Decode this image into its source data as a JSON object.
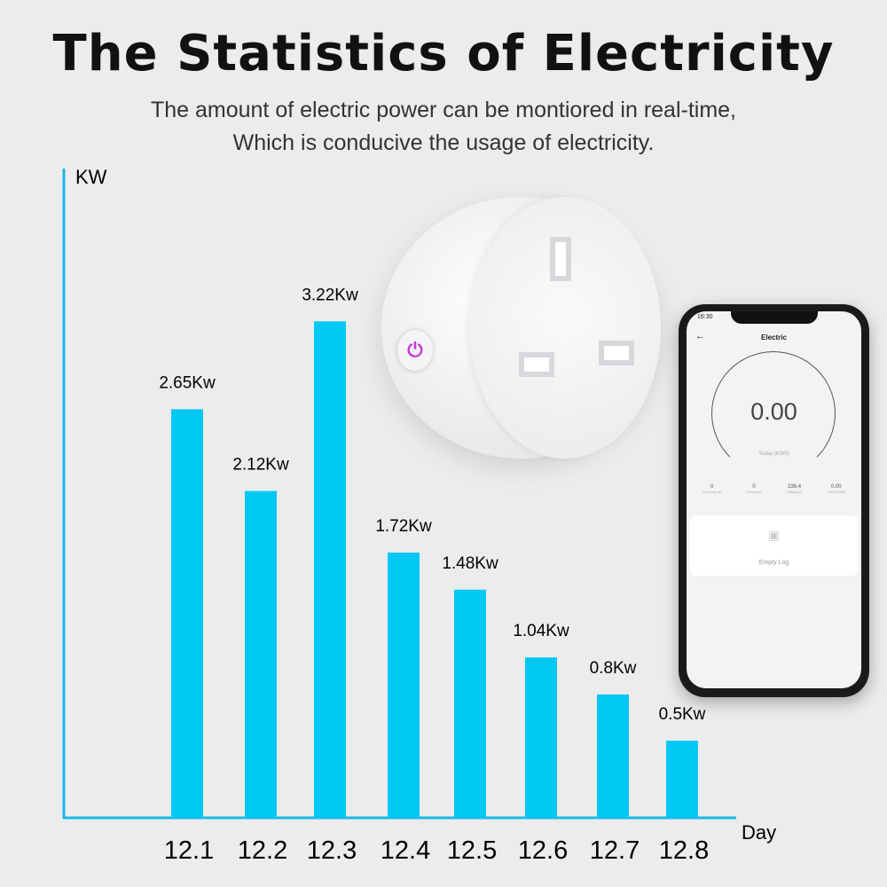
{
  "header": {
    "title": "The Statistics of Electricity",
    "subtitle_line1": "The amount of electric power can be montiored in real-time,",
    "subtitle_line2": "Which is conducive the usage of electricity."
  },
  "colors": {
    "bar": "#00c8f5",
    "axis": "#1ab8e8",
    "background": "#ececec"
  },
  "chart_data": {
    "type": "bar",
    "title": "",
    "ylabel": "KW",
    "xlabel": "Day",
    "categories": [
      "12.1",
      "12.2",
      "12.3",
      "12.4",
      "12.5",
      "12.6",
      "12.7",
      "12.8"
    ],
    "values": [
      2.65,
      2.12,
      3.22,
      1.72,
      1.48,
      1.04,
      0.8,
      0.5
    ],
    "data_labels": [
      "2.65Kw",
      "2.12Kw",
      "3.22Kw",
      "1.72Kw",
      "1.48Kw",
      "1.04Kw",
      "0.8Kw",
      "0.5Kw"
    ],
    "ylim": [
      0,
      4.2
    ],
    "grid": false
  },
  "phone": {
    "time": "16:30",
    "screen_title": "Electric",
    "gauge_value": "0.00",
    "gauge_label": "Today (KWh)",
    "stats": [
      {
        "value": "0",
        "label": "Current(mA)"
      },
      {
        "value": "0",
        "label": "Power(W)"
      },
      {
        "value": "236.4",
        "label": "Voltage(V)"
      },
      {
        "value": "0.00",
        "label": "Total (KWh)"
      }
    ],
    "empty_log": "Empty Log"
  }
}
